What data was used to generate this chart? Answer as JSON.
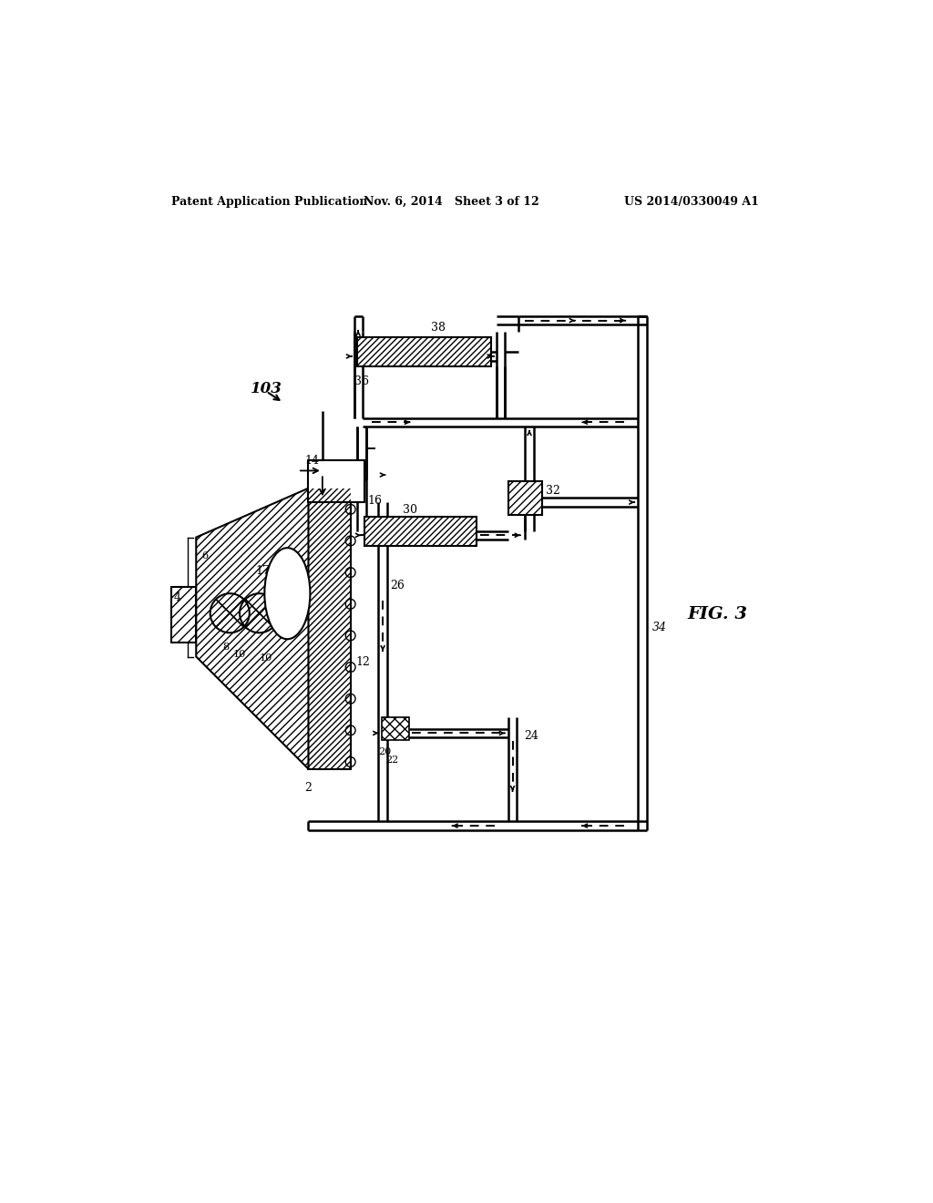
{
  "bg_color": "#ffffff",
  "line_color": "#000000",
  "header_left": "Patent Application Publication",
  "header_mid": "Nov. 6, 2014   Sheet 3 of 12",
  "header_right": "US 2014/0330049 A1",
  "fig_label": "FIG. 3",
  "diagram_label": "103",
  "pipe_lw": 1.8,
  "component_lw": 1.5
}
